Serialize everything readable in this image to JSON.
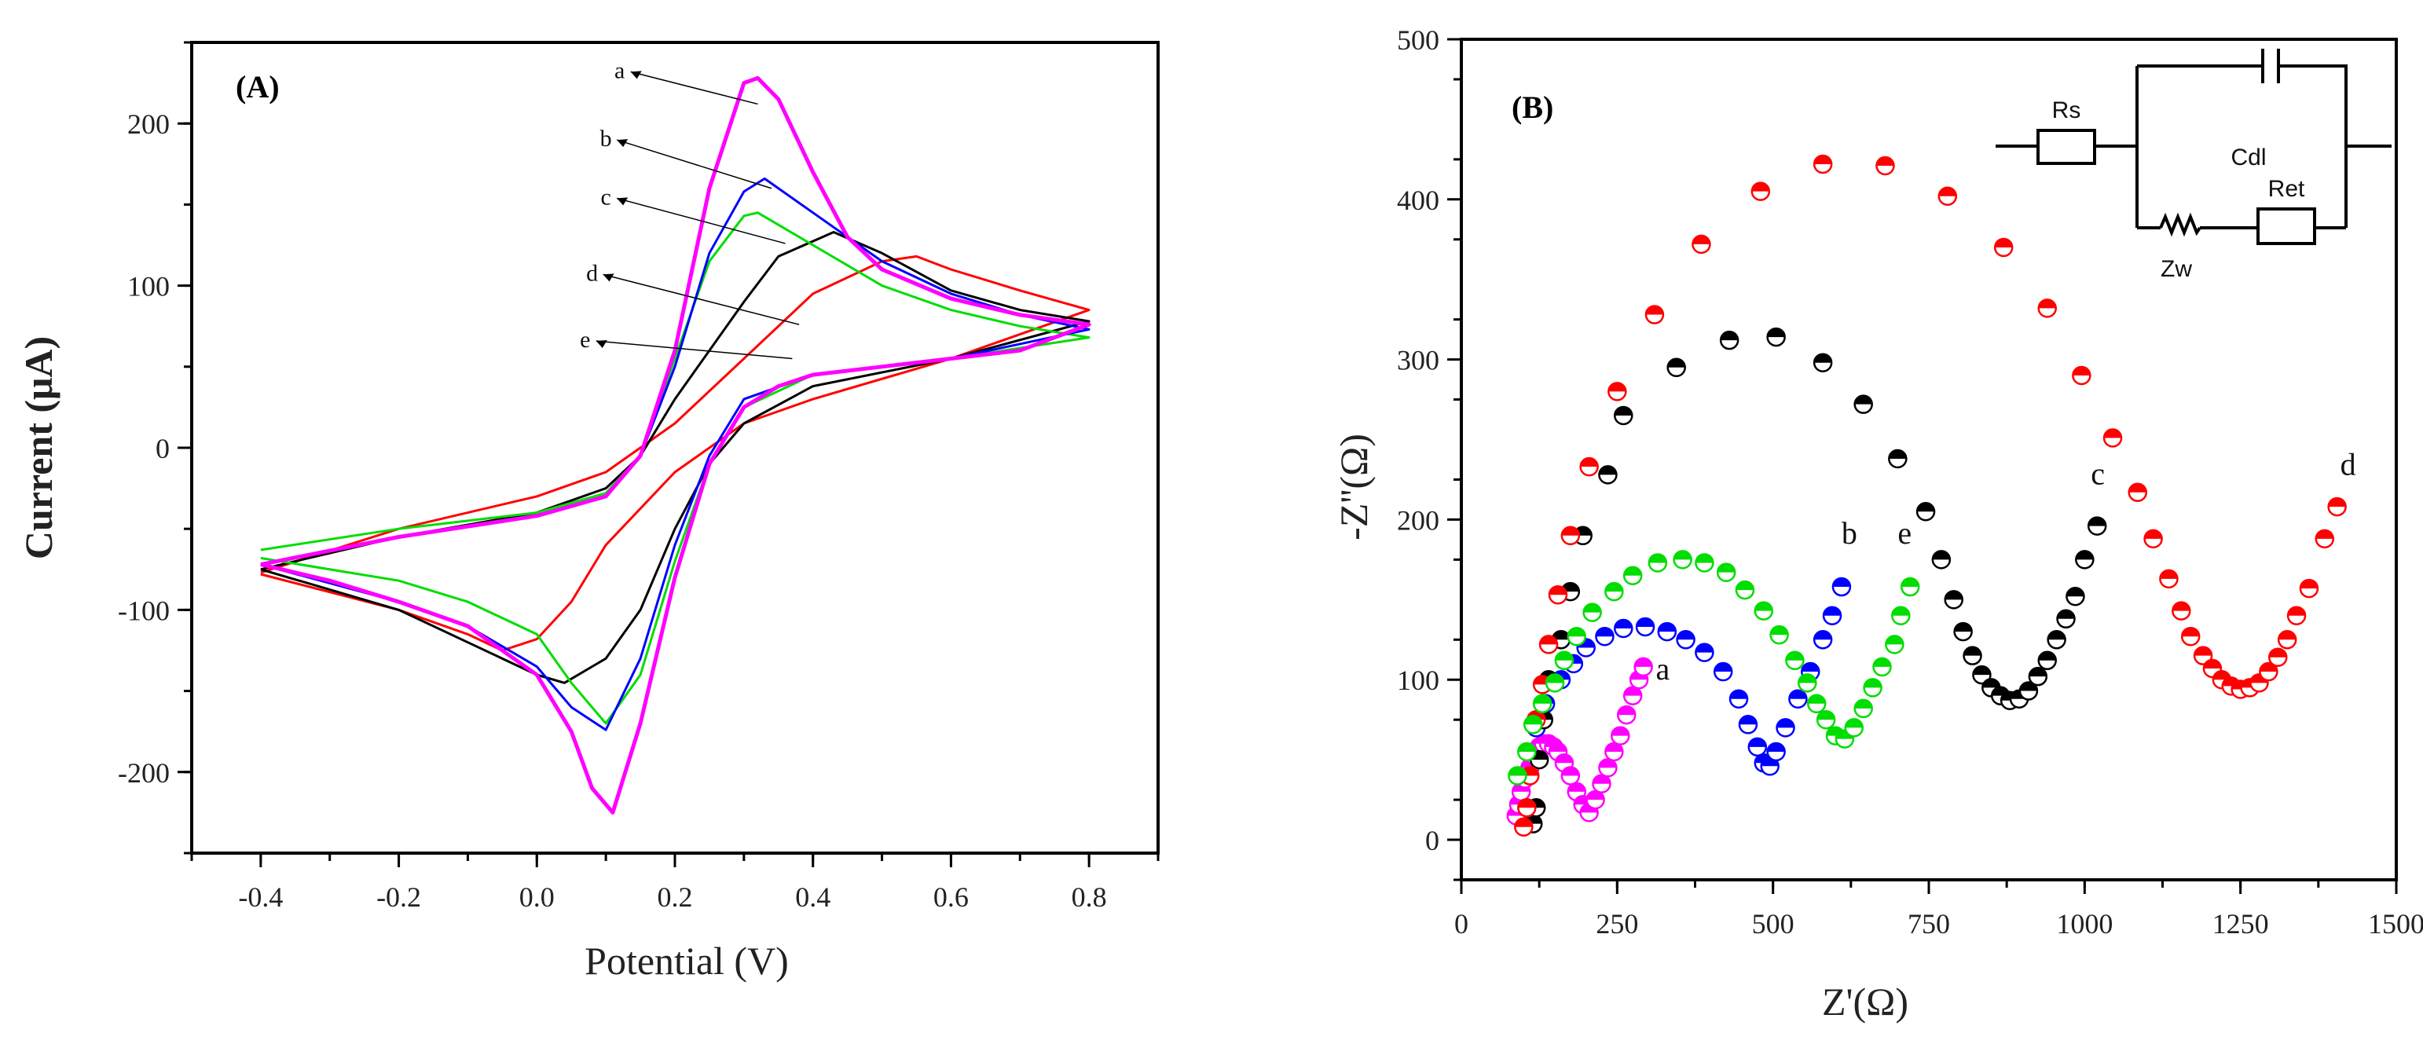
{
  "chart_data": [
    {
      "type": "line",
      "panel_label": "(A)",
      "xlabel": "Potential (V)",
      "ylabel": "Current (μA)",
      "xlim": [
        -0.5,
        0.9
      ],
      "ylim": [
        -250,
        250
      ],
      "xticks": [
        -0.4,
        -0.2,
        0.0,
        0.2,
        0.4,
        0.6,
        0.8
      ],
      "xtick_labels": [
        "-0.4",
        "-0.2",
        "0.0",
        "0.2",
        "0.4",
        "0.6",
        "0.8"
      ],
      "yticks": [
        -200,
        -100,
        0,
        100,
        200
      ],
      "ytick_labels": [
        "-200",
        "-100",
        "0",
        "100",
        "200"
      ],
      "grid": false,
      "series": [
        {
          "name": "a",
          "color": "#ff00ff",
          "width": 5,
          "x": [
            -0.4,
            -0.2,
            0,
            0.1,
            0.15,
            0.2,
            0.25,
            0.3,
            0.32,
            0.35,
            0.4,
            0.45,
            0.5,
            0.6,
            0.7,
            0.8,
            0.7,
            0.6,
            0.5,
            0.4,
            0.35,
            0.3,
            0.25,
            0.2,
            0.15,
            0.11,
            0.08,
            0.05,
            0,
            -0.1,
            -0.2,
            -0.3,
            -0.4
          ],
          "y": [
            -72,
            -55,
            -42,
            -30,
            -5,
            60,
            160,
            225,
            228,
            215,
            170,
            130,
            110,
            92,
            82,
            76,
            60,
            55,
            50,
            45,
            38,
            25,
            -10,
            -80,
            -170,
            -225,
            -210,
            -175,
            -140,
            -110,
            -95,
            -82,
            -72
          ]
        },
        {
          "name": "b",
          "color": "#0000ff",
          "width": 3,
          "x": [
            -0.4,
            -0.2,
            0,
            0.1,
            0.15,
            0.2,
            0.25,
            0.3,
            0.33,
            0.4,
            0.5,
            0.6,
            0.7,
            0.8,
            0.6,
            0.4,
            0.3,
            0.25,
            0.2,
            0.15,
            0.1,
            0.05,
            0,
            -0.1,
            -0.2,
            -0.4
          ],
          "y": [
            -72,
            -55,
            -42,
            -30,
            -5,
            50,
            120,
            158,
            166,
            145,
            115,
            95,
            82,
            73,
            55,
            45,
            30,
            -5,
            -60,
            -130,
            -174,
            -160,
            -135,
            -110,
            -95,
            -72
          ]
        },
        {
          "name": "c",
          "color": "#00dd00",
          "width": 3,
          "x": [
            -0.4,
            -0.2,
            0,
            0.1,
            0.15,
            0.2,
            0.25,
            0.3,
            0.32,
            0.4,
            0.5,
            0.6,
            0.7,
            0.8,
            0.6,
            0.4,
            0.3,
            0.25,
            0.2,
            0.15,
            0.1,
            0.05,
            0,
            -0.1,
            -0.2,
            -0.4
          ],
          "y": [
            -63,
            -50,
            -40,
            -28,
            -5,
            55,
            115,
            143,
            145,
            125,
            100,
            85,
            75,
            68,
            55,
            45,
            25,
            -10,
            -70,
            -140,
            -170,
            -145,
            -115,
            -95,
            -82,
            -68
          ]
        },
        {
          "name": "d",
          "color": "#000000",
          "width": 3,
          "x": [
            -0.4,
            -0.2,
            0,
            0.1,
            0.15,
            0.2,
            0.3,
            0.35,
            0.43,
            0.5,
            0.6,
            0.7,
            0.8,
            0.6,
            0.4,
            0.3,
            0.25,
            0.2,
            0.15,
            0.1,
            0.04,
            0,
            -0.1,
            -0.2,
            -0.4
          ],
          "y": [
            -75,
            -55,
            -40,
            -25,
            -5,
            30,
            90,
            118,
            133,
            120,
            97,
            85,
            78,
            55,
            38,
            15,
            -10,
            -50,
            -100,
            -130,
            -145,
            -140,
            -120,
            -100,
            -75
          ]
        },
        {
          "name": "e",
          "color": "#ff0000",
          "width": 3,
          "x": [
            -0.4,
            -0.2,
            0,
            0.1,
            0.2,
            0.3,
            0.4,
            0.5,
            0.55,
            0.6,
            0.7,
            0.8,
            0.6,
            0.4,
            0.3,
            0.2,
            0.1,
            0.05,
            0,
            -0.05,
            -0.1,
            -0.2,
            -0.4
          ],
          "y": [
            -77,
            -50,
            -30,
            -15,
            15,
            55,
            95,
            115,
            118,
            110,
            97,
            85,
            55,
            30,
            15,
            -15,
            -60,
            -95,
            -118,
            -125,
            -115,
            -100,
            -78
          ]
        }
      ]
    },
    {
      "type": "scatter",
      "panel_label": "(B)",
      "xlabel": "Z'(Ω)",
      "ylabel": "-Z''(Ω)",
      "xlim": [
        0,
        1500
      ],
      "ylim": [
        -25,
        500
      ],
      "xticks": [
        0,
        250,
        500,
        750,
        1000,
        1250,
        1500
      ],
      "xtick_labels": [
        "0",
        "250",
        "500",
        "750",
        "1000",
        "1250",
        "1500"
      ],
      "yticks": [
        0,
        100,
        200,
        300,
        400,
        500
      ],
      "ytick_labels": [
        "0",
        "100",
        "200",
        "300",
        "400",
        "500"
      ],
      "grid": false,
      "inset_circuit": {
        "labels": [
          "Rs",
          "Cdl",
          "Ret",
          "Zw"
        ]
      },
      "series": [
        {
          "name": "a",
          "color": "#ff00ff",
          "x": [
            88,
            92,
            96,
            102,
            110,
            118,
            125,
            132,
            140,
            148,
            155,
            165,
            175,
            185,
            195,
            205,
            215,
            225,
            235,
            245,
            255,
            265,
            275,
            285,
            292
          ],
          "y": [
            15,
            22,
            30,
            38,
            45,
            52,
            58,
            60,
            60,
            58,
            55,
            48,
            40,
            30,
            22,
            17,
            25,
            35,
            45,
            55,
            65,
            78,
            90,
            100,
            108
          ]
        },
        {
          "name": "b",
          "color": "#0000ff",
          "x": [
            120,
            135,
            160,
            180,
            200,
            230,
            260,
            295,
            330,
            360,
            390,
            420,
            445,
            460,
            475,
            485,
            495,
            505,
            520,
            540,
            560,
            580,
            595,
            610
          ],
          "y": [
            70,
            85,
            100,
            110,
            120,
            127,
            132,
            133,
            130,
            125,
            117,
            105,
            88,
            72,
            58,
            48,
            46,
            55,
            70,
            88,
            105,
            125,
            140,
            158
          ]
        },
        {
          "name": "c",
          "color": "#000000",
          "x": [
            115,
            120,
            125,
            132,
            140,
            160,
            175,
            195,
            235,
            260,
            345,
            430,
            505,
            580,
            645,
            700,
            745,
            770,
            790,
            805,
            820,
            835,
            850,
            865,
            880,
            895,
            910,
            925,
            940,
            955,
            970,
            985,
            1000,
            1020
          ],
          "y": [
            10,
            20,
            50,
            75,
            100,
            125,
            155,
            190,
            228,
            265,
            295,
            312,
            314,
            298,
            272,
            238,
            205,
            175,
            150,
            130,
            115,
            103,
            95,
            90,
            87,
            88,
            93,
            102,
            112,
            125,
            138,
            152,
            175,
            196
          ]
        },
        {
          "name": "d",
          "color": "#ff0000",
          "x": [
            100,
            105,
            110,
            120,
            130,
            140,
            155,
            175,
            205,
            250,
            310,
            385,
            480,
            580,
            680,
            780,
            870,
            940,
            995,
            1045,
            1085,
            1110,
            1135,
            1155,
            1170,
            1190,
            1205,
            1220,
            1235,
            1250,
            1265,
            1280,
            1295,
            1310,
            1325,
            1340,
            1360,
            1385,
            1405
          ],
          "y": [
            8,
            20,
            40,
            75,
            97,
            122,
            153,
            190,
            233,
            280,
            328,
            372,
            405,
            422,
            421,
            402,
            370,
            332,
            290,
            251,
            217,
            188,
            163,
            143,
            127,
            115,
            107,
            100,
            96,
            94,
            95,
            98,
            105,
            114,
            125,
            140,
            157,
            188,
            208
          ]
        },
        {
          "name": "e",
          "color": "#00dd00",
          "x": [
            90,
            105,
            115,
            130,
            150,
            165,
            185,
            210,
            245,
            275,
            315,
            355,
            390,
            425,
            455,
            485,
            510,
            535,
            555,
            570,
            585,
            600,
            615,
            630,
            645,
            660,
            675,
            695,
            705,
            720
          ],
          "y": [
            40,
            55,
            72,
            85,
            98,
            112,
            127,
            142,
            155,
            165,
            173,
            175,
            173,
            167,
            156,
            143,
            128,
            112,
            98,
            85,
            75,
            65,
            63,
            70,
            82,
            95,
            108,
            122,
            140,
            158
          ]
        }
      ]
    }
  ]
}
